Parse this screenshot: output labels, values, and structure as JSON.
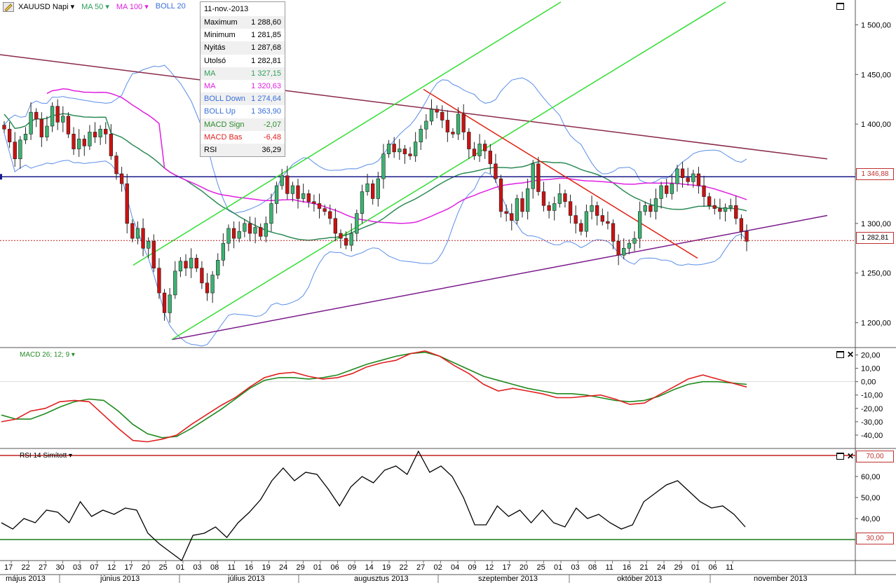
{
  "header": {
    "symbol": "XAUUSD Napi",
    "ma50_label": "MA 50",
    "ma100_label": "MA 100",
    "boll_label": "BOLL 20"
  },
  "infobox": {
    "date": "11-nov.-2013",
    "rows": [
      {
        "label": "Maximum",
        "value": "1 288,60",
        "color": "#000000"
      },
      {
        "label": "Minimum",
        "value": "1 281,85",
        "color": "#000000"
      },
      {
        "label": "Nyitás",
        "value": "1 287,68",
        "color": "#000000"
      },
      {
        "label": "Utolsó",
        "value": "1 282,81",
        "color": "#000000"
      },
      {
        "label": "MA",
        "value": "1 327,15",
        "color": "#2e9e5b"
      },
      {
        "label": "MA",
        "value": "1 320,63",
        "color": "#e020e0"
      },
      {
        "label": "BOLL Down",
        "value": "1 274,64",
        "color": "#3a6fd8"
      },
      {
        "label": "BOLL Up",
        "value": "1 363,90",
        "color": "#3a6fd8"
      },
      {
        "label": "MACD Sign",
        "value": "-2,07",
        "color": "#2a8a2a"
      },
      {
        "label": "MACD Bas",
        "value": "-6,48",
        "color": "#e02020"
      },
      {
        "label": "RSI",
        "value": "36,29",
        "color": "#000000"
      }
    ]
  },
  "price_labels": {
    "resistance": "1 346,88",
    "last": "1 282,81"
  },
  "macd_label": "MACD 26; 12; 9",
  "rsi_label": "RSI 14 Simított",
  "rsi_levels": {
    "upper": "70,00",
    "lower": "30,00"
  },
  "colors": {
    "up_candle": "#3cb371",
    "down_candle": "#cc1111",
    "ma50": "#2e8b57",
    "ma100": "#e020e0",
    "boll": "#5b8ee8",
    "channel": "#33dd33",
    "resistance": "#1a1a8a",
    "trend_red": "#e02010",
    "trend_purple": "#7a1a8a",
    "trend_brown": "#8a2a4a",
    "macd": "#e02020",
    "signal": "#1e8a1e",
    "rsi": "#000000"
  },
  "chart_data": [
    {
      "type": "candlestick",
      "title": "XAUUSD Napi",
      "ylim": [
        1175,
        1525
      ],
      "yticks": [
        "1 200,00",
        "1 250,00",
        "1 300,00",
        "1 350,00",
        "1 400,00",
        "1 450,00",
        "1 500,00"
      ],
      "ytick_values": [
        1200,
        1250,
        1300,
        1350,
        1400,
        1450,
        1500
      ],
      "xticks": [
        "17",
        "22",
        "27",
        "30",
        "03",
        "07",
        "12",
        "17",
        "20",
        "25",
        "01",
        "03",
        "08",
        "11",
        "16",
        "19",
        "24",
        "29",
        "01",
        "06",
        "09",
        "14",
        "19",
        "22",
        "27",
        "02",
        "04",
        "09",
        "12",
        "17",
        "20",
        "25",
        "01",
        "03",
        "08",
        "11",
        "16",
        "21",
        "24",
        "29",
        "01",
        "06",
        "11"
      ],
      "months": [
        "május 2013",
        "június 2013",
        "július 2013",
        "augusztus 2013",
        "szeptember 2013",
        "október 2013",
        "november 2013"
      ],
      "close": [
        1395,
        1382,
        1365,
        1384,
        1390,
        1412,
        1405,
        1387,
        1398,
        1418,
        1402,
        1408,
        1390,
        1375,
        1385,
        1378,
        1392,
        1387,
        1395,
        1390,
        1368,
        1350,
        1340,
        1300,
        1285,
        1295,
        1275,
        1282,
        1255,
        1230,
        1210,
        1228,
        1252,
        1262,
        1255,
        1265,
        1255,
        1240,
        1230,
        1248,
        1263,
        1280,
        1295,
        1285,
        1292,
        1300,
        1290,
        1296,
        1287,
        1300,
        1320,
        1338,
        1348,
        1330,
        1338,
        1325,
        1330,
        1322,
        1320,
        1315,
        1312,
        1305,
        1290,
        1285,
        1278,
        1290,
        1310,
        1332,
        1340,
        1325,
        1345,
        1370,
        1380,
        1372,
        1375,
        1370,
        1368,
        1382,
        1395,
        1403,
        1415,
        1412,
        1404,
        1392,
        1390,
        1410,
        1392,
        1375,
        1368,
        1380,
        1373,
        1360,
        1345,
        1312,
        1310,
        1303,
        1325,
        1312,
        1335,
        1360,
        1332,
        1318,
        1313,
        1320,
        1330,
        1322,
        1308,
        1300,
        1292,
        1312,
        1318,
        1308,
        1302,
        1300,
        1282,
        1268,
        1275,
        1280,
        1285,
        1312,
        1318,
        1312,
        1325,
        1338,
        1330,
        1340,
        1355,
        1346,
        1342,
        1350,
        1338,
        1327,
        1318,
        1315,
        1312,
        1316,
        1318,
        1305,
        1292,
        1282
      ],
      "resistance_level": 1346.88,
      "last_price": 1282.81
    },
    {
      "type": "line",
      "title": "MACD 26; 12; 9",
      "ylim": [
        -50,
        25
      ],
      "yticks": [
        "20,00",
        "10,00",
        "0,00",
        "-10,00",
        "-20,00",
        "-30,00",
        "-40,00"
      ],
      "ytick_values": [
        20,
        10,
        0,
        -10,
        -20,
        -30,
        -40
      ],
      "series": [
        {
          "name": "MACD Bas",
          "values": [
            -30,
            -28,
            -22,
            -20,
            -15,
            -14,
            -15,
            -25,
            -35,
            -44,
            -45,
            -43,
            -40,
            -32,
            -25,
            -18,
            -12,
            -4,
            3,
            6,
            7,
            4,
            2,
            3,
            6,
            11,
            14,
            16,
            21,
            23,
            19,
            12,
            6,
            -2,
            -7,
            -5,
            -7,
            -9,
            -12,
            -12,
            -11,
            -10,
            -13,
            -17,
            -16,
            -10,
            -4,
            2,
            5,
            2,
            -1,
            -4
          ]
        },
        {
          "name": "MACD Sign",
          "values": [
            -25,
            -28,
            -28,
            -24,
            -19,
            -15,
            -13,
            -14,
            -22,
            -32,
            -39,
            -42,
            -41,
            -35,
            -28,
            -21,
            -13,
            -5,
            1,
            3,
            3,
            2,
            3,
            5,
            9,
            13,
            16,
            19,
            21,
            22,
            19,
            14,
            9,
            4,
            1,
            -2,
            -5,
            -7,
            -9,
            -9,
            -10,
            -12,
            -14,
            -15,
            -14,
            -11,
            -6,
            -2,
            0,
            0,
            -1,
            -2
          ]
        }
      ],
      "last_values": {
        "MACD Sign": -2.07,
        "MACD Bas": -6.48
      }
    },
    {
      "type": "line",
      "title": "RSI 14 Simított",
      "ylim": [
        20,
        73
      ],
      "yticks": [
        "60,00",
        "50,00",
        "40,00"
      ],
      "ytick_values": [
        60,
        50,
        40
      ],
      "levels": [
        70,
        30
      ],
      "series": [
        {
          "name": "RSI",
          "values": [
            38,
            35,
            40,
            38,
            44,
            43,
            38,
            48,
            41,
            44,
            42,
            45,
            44,
            33,
            28,
            24,
            20,
            32,
            33,
            36,
            31,
            38,
            43,
            49,
            58,
            64,
            58,
            62,
            61,
            54,
            46,
            55,
            60,
            57,
            63,
            65,
            61,
            72,
            62,
            65,
            60,
            50,
            37,
            37,
            46,
            41,
            44,
            38,
            44,
            38,
            36,
            45,
            40,
            42,
            38,
            35,
            37,
            48,
            52,
            56,
            58,
            53,
            48,
            45,
            46,
            42,
            36
          ]
        }
      ],
      "last_value": 36.29
    }
  ]
}
